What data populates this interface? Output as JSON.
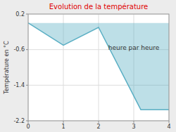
{
  "chart_data": {
    "type": "area",
    "title": "Evolution de la température",
    "xlabel": "heure par heure",
    "ylabel": "Température en °C",
    "x": [
      0,
      1,
      2,
      3.2,
      4
    ],
    "y": [
      0.0,
      -0.5,
      -0.1,
      -1.95,
      -1.95
    ],
    "color": "#5bafc4",
    "xlim": [
      0,
      4
    ],
    "ylim": [
      -2.2,
      0.2
    ],
    "xticks": [
      0,
      1,
      2,
      3,
      4
    ],
    "yticks": [
      0.2,
      -0.6,
      -1.4,
      -2.2
    ],
    "grid": true
  }
}
